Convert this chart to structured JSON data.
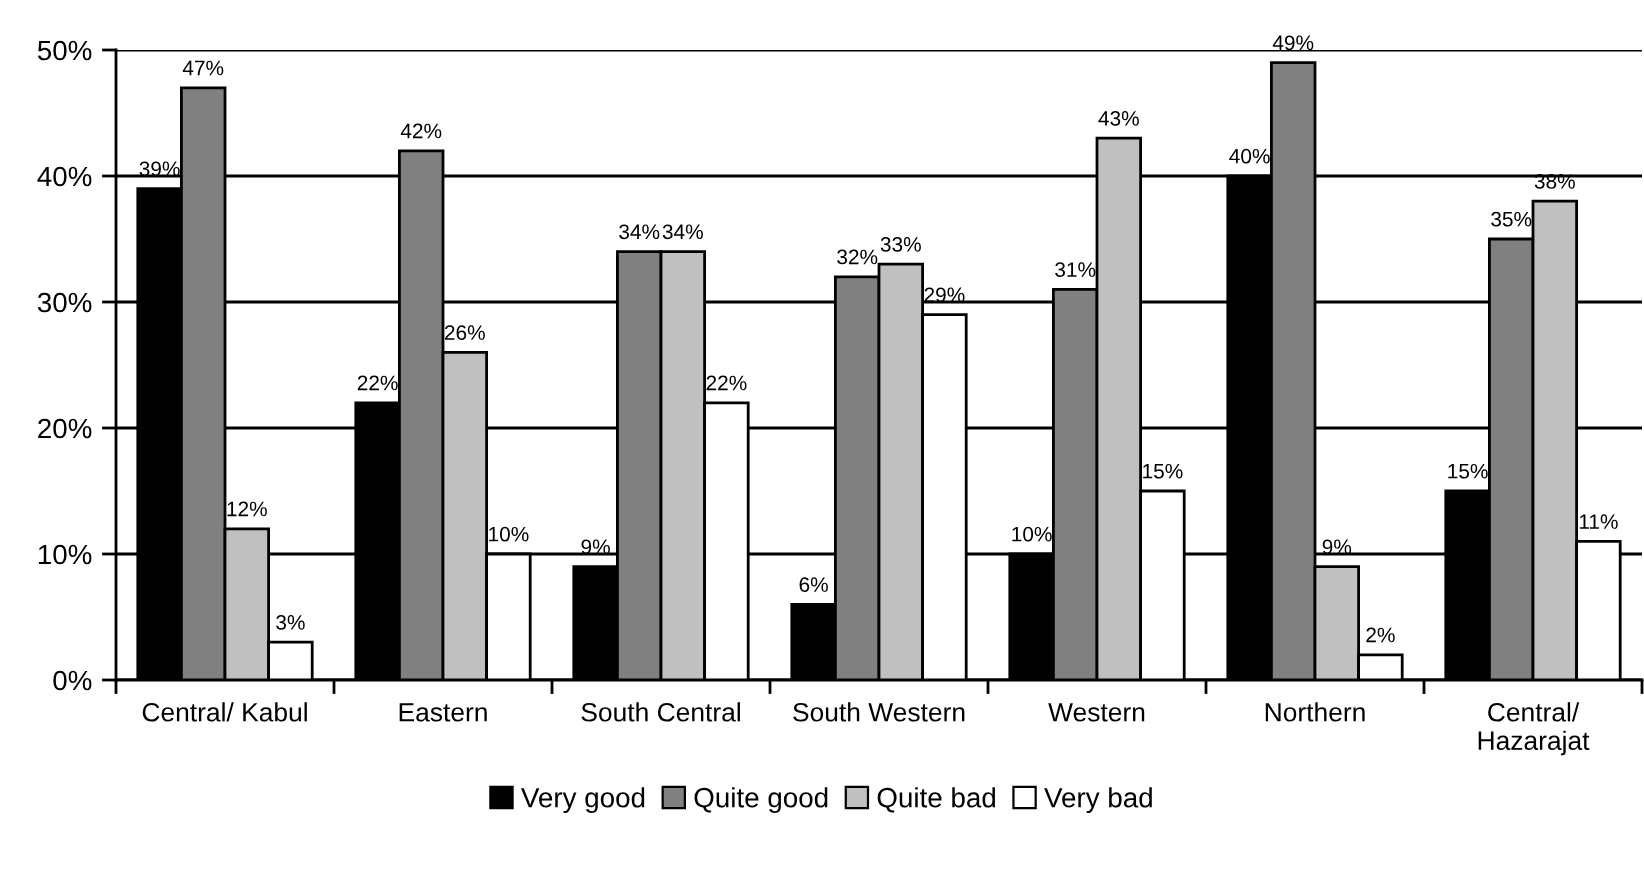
{
  "chart_data": {
    "type": "bar",
    "categories": [
      "Central/ Kabul",
      "Eastern",
      "South Central",
      "South Western",
      "Western",
      "Northern",
      "Central/\nHazarajat"
    ],
    "series": [
      {
        "name": "Very good",
        "color": "#000000",
        "values": [
          39,
          22,
          9,
          6,
          10,
          40,
          15
        ],
        "value_labels": [
          "39%",
          "22%",
          "9%",
          "6%",
          "10%",
          "40%",
          "15%"
        ]
      },
      {
        "name": "Quite good",
        "color": "#808080",
        "values": [
          47,
          42,
          34,
          32,
          31,
          49,
          35
        ],
        "value_labels": [
          "47%",
          "42%",
          "34%",
          "32%",
          "31%",
          "49%",
          "35%"
        ]
      },
      {
        "name": "Quite bad",
        "color": "#c0c0c0",
        "values": [
          12,
          26,
          34,
          33,
          43,
          9,
          38
        ],
        "value_labels": [
          "12%",
          "26%",
          "34%",
          "33%",
          "43%",
          "9%",
          "38%"
        ]
      },
      {
        "name": "Very bad",
        "color": "#ffffff",
        "values": [
          3,
          10,
          22,
          29,
          15,
          2,
          11
        ],
        "value_labels": [
          "3%",
          "10%",
          "22%",
          "29%",
          "15%",
          "2%",
          "11%"
        ]
      }
    ],
    "ylim": [
      0,
      50
    ],
    "yticks": [
      {
        "value": 0,
        "label": "0%"
      },
      {
        "value": 10,
        "label": "10%"
      },
      {
        "value": 20,
        "label": "20%"
      },
      {
        "value": 30,
        "label": "30%"
      },
      {
        "value": 40,
        "label": "40%"
      },
      {
        "value": 50,
        "label": "50%"
      }
    ],
    "grid": "y",
    "legend": "bottom"
  }
}
